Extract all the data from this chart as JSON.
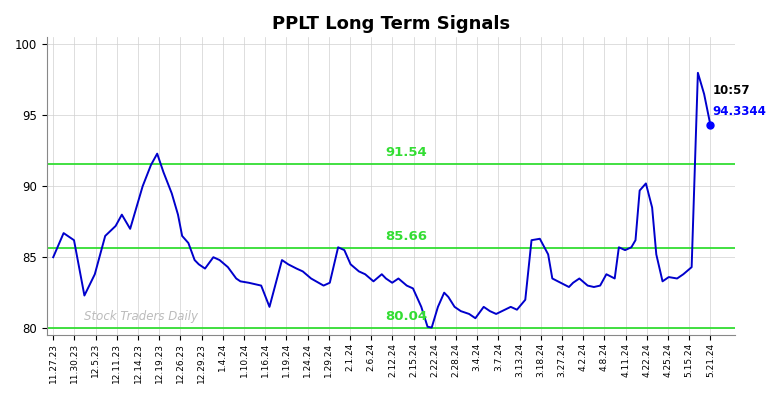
{
  "title": "PPLT Long Term Signals",
  "watermark": "Stock Traders Daily",
  "green": "#33dd33",
  "hline_91": 91.54,
  "hline_85": 85.66,
  "hline_80": 80.04,
  "hline_base": 80.0,
  "ylim_lo": 79.5,
  "ylim_hi": 100.5,
  "yticks": [
    80,
    85,
    90,
    95,
    100
  ],
  "annotation_time": "10:57",
  "annotation_price": "94.3344",
  "line_color": "#0000cc",
  "dot_color": "#0000ff",
  "x_labels": [
    "11.27.23",
    "11.30.23",
    "12.5.23",
    "12.11.23",
    "12.14.23",
    "12.19.23",
    "12.26.23",
    "12.29.23",
    "1.4.24",
    "1.10.24",
    "1.16.24",
    "1.19.24",
    "1.24.24",
    "1.29.24",
    "2.1.24",
    "2.6.24",
    "2.12.24",
    "2.15.24",
    "2.22.24",
    "2.28.24",
    "3.4.24",
    "3.7.24",
    "3.13.24",
    "3.18.24",
    "3.27.24",
    "4.2.24",
    "4.8.24",
    "4.11.24",
    "4.22.24",
    "4.25.24",
    "5.15.24",
    "5.21.24"
  ],
  "raw_x": [
    0.0,
    0.5,
    1.0,
    1.5,
    2.0,
    2.5,
    3.0,
    3.3,
    3.7,
    4.0,
    4.3,
    4.7,
    5.0,
    5.3,
    5.7,
    6.0,
    6.2,
    6.5,
    6.8,
    7.0,
    7.3,
    7.7,
    8.0,
    8.4,
    8.8,
    9.0,
    9.4,
    10.0,
    10.4,
    11.0,
    11.3,
    11.7,
    12.0,
    12.4,
    13.0,
    13.3,
    13.7,
    14.0,
    14.3,
    14.7,
    15.0,
    15.4,
    15.8,
    16.0,
    16.3,
    16.6,
    17.0,
    17.3,
    17.7,
    18.0,
    18.2,
    18.5,
    18.8,
    19.0,
    19.3,
    19.6,
    20.0,
    20.3,
    20.7,
    21.0,
    21.3,
    22.0,
    22.3,
    22.7,
    23.0,
    23.4,
    23.8,
    24.0,
    24.4,
    24.8,
    25.0,
    25.3,
    25.7,
    26.0,
    26.3,
    26.6,
    27.0,
    27.2,
    27.5,
    27.8,
    28.0,
    28.2,
    28.5,
    28.8,
    29.0,
    29.3,
    29.6,
    30.0,
    30.3,
    30.7,
    31.0,
    31.3,
    31.6
  ],
  "raw_y": [
    85.0,
    86.7,
    86.2,
    82.3,
    83.8,
    86.5,
    87.2,
    88.0,
    87.0,
    88.5,
    90.0,
    91.5,
    92.3,
    91.0,
    89.5,
    88.0,
    86.5,
    86.0,
    84.8,
    84.5,
    84.2,
    85.0,
    84.8,
    84.3,
    83.5,
    83.3,
    83.2,
    83.0,
    81.5,
    84.8,
    84.5,
    84.2,
    84.0,
    83.5,
    83.0,
    83.2,
    85.7,
    85.5,
    84.5,
    84.0,
    83.8,
    83.3,
    83.8,
    83.5,
    83.2,
    83.5,
    83.0,
    82.8,
    81.5,
    80.1,
    80.04,
    81.5,
    82.5,
    82.2,
    81.5,
    81.2,
    81.0,
    80.7,
    81.5,
    81.2,
    81.0,
    81.5,
    81.3,
    82.0,
    86.2,
    86.3,
    85.2,
    83.5,
    83.2,
    82.9,
    83.2,
    83.5,
    83.0,
    82.9,
    83.0,
    83.8,
    83.5,
    85.7,
    85.5,
    85.7,
    86.2,
    89.7,
    90.2,
    88.5,
    85.2,
    83.3,
    83.6,
    83.5,
    83.8,
    84.3,
    98.0,
    96.5,
    94.3344
  ]
}
